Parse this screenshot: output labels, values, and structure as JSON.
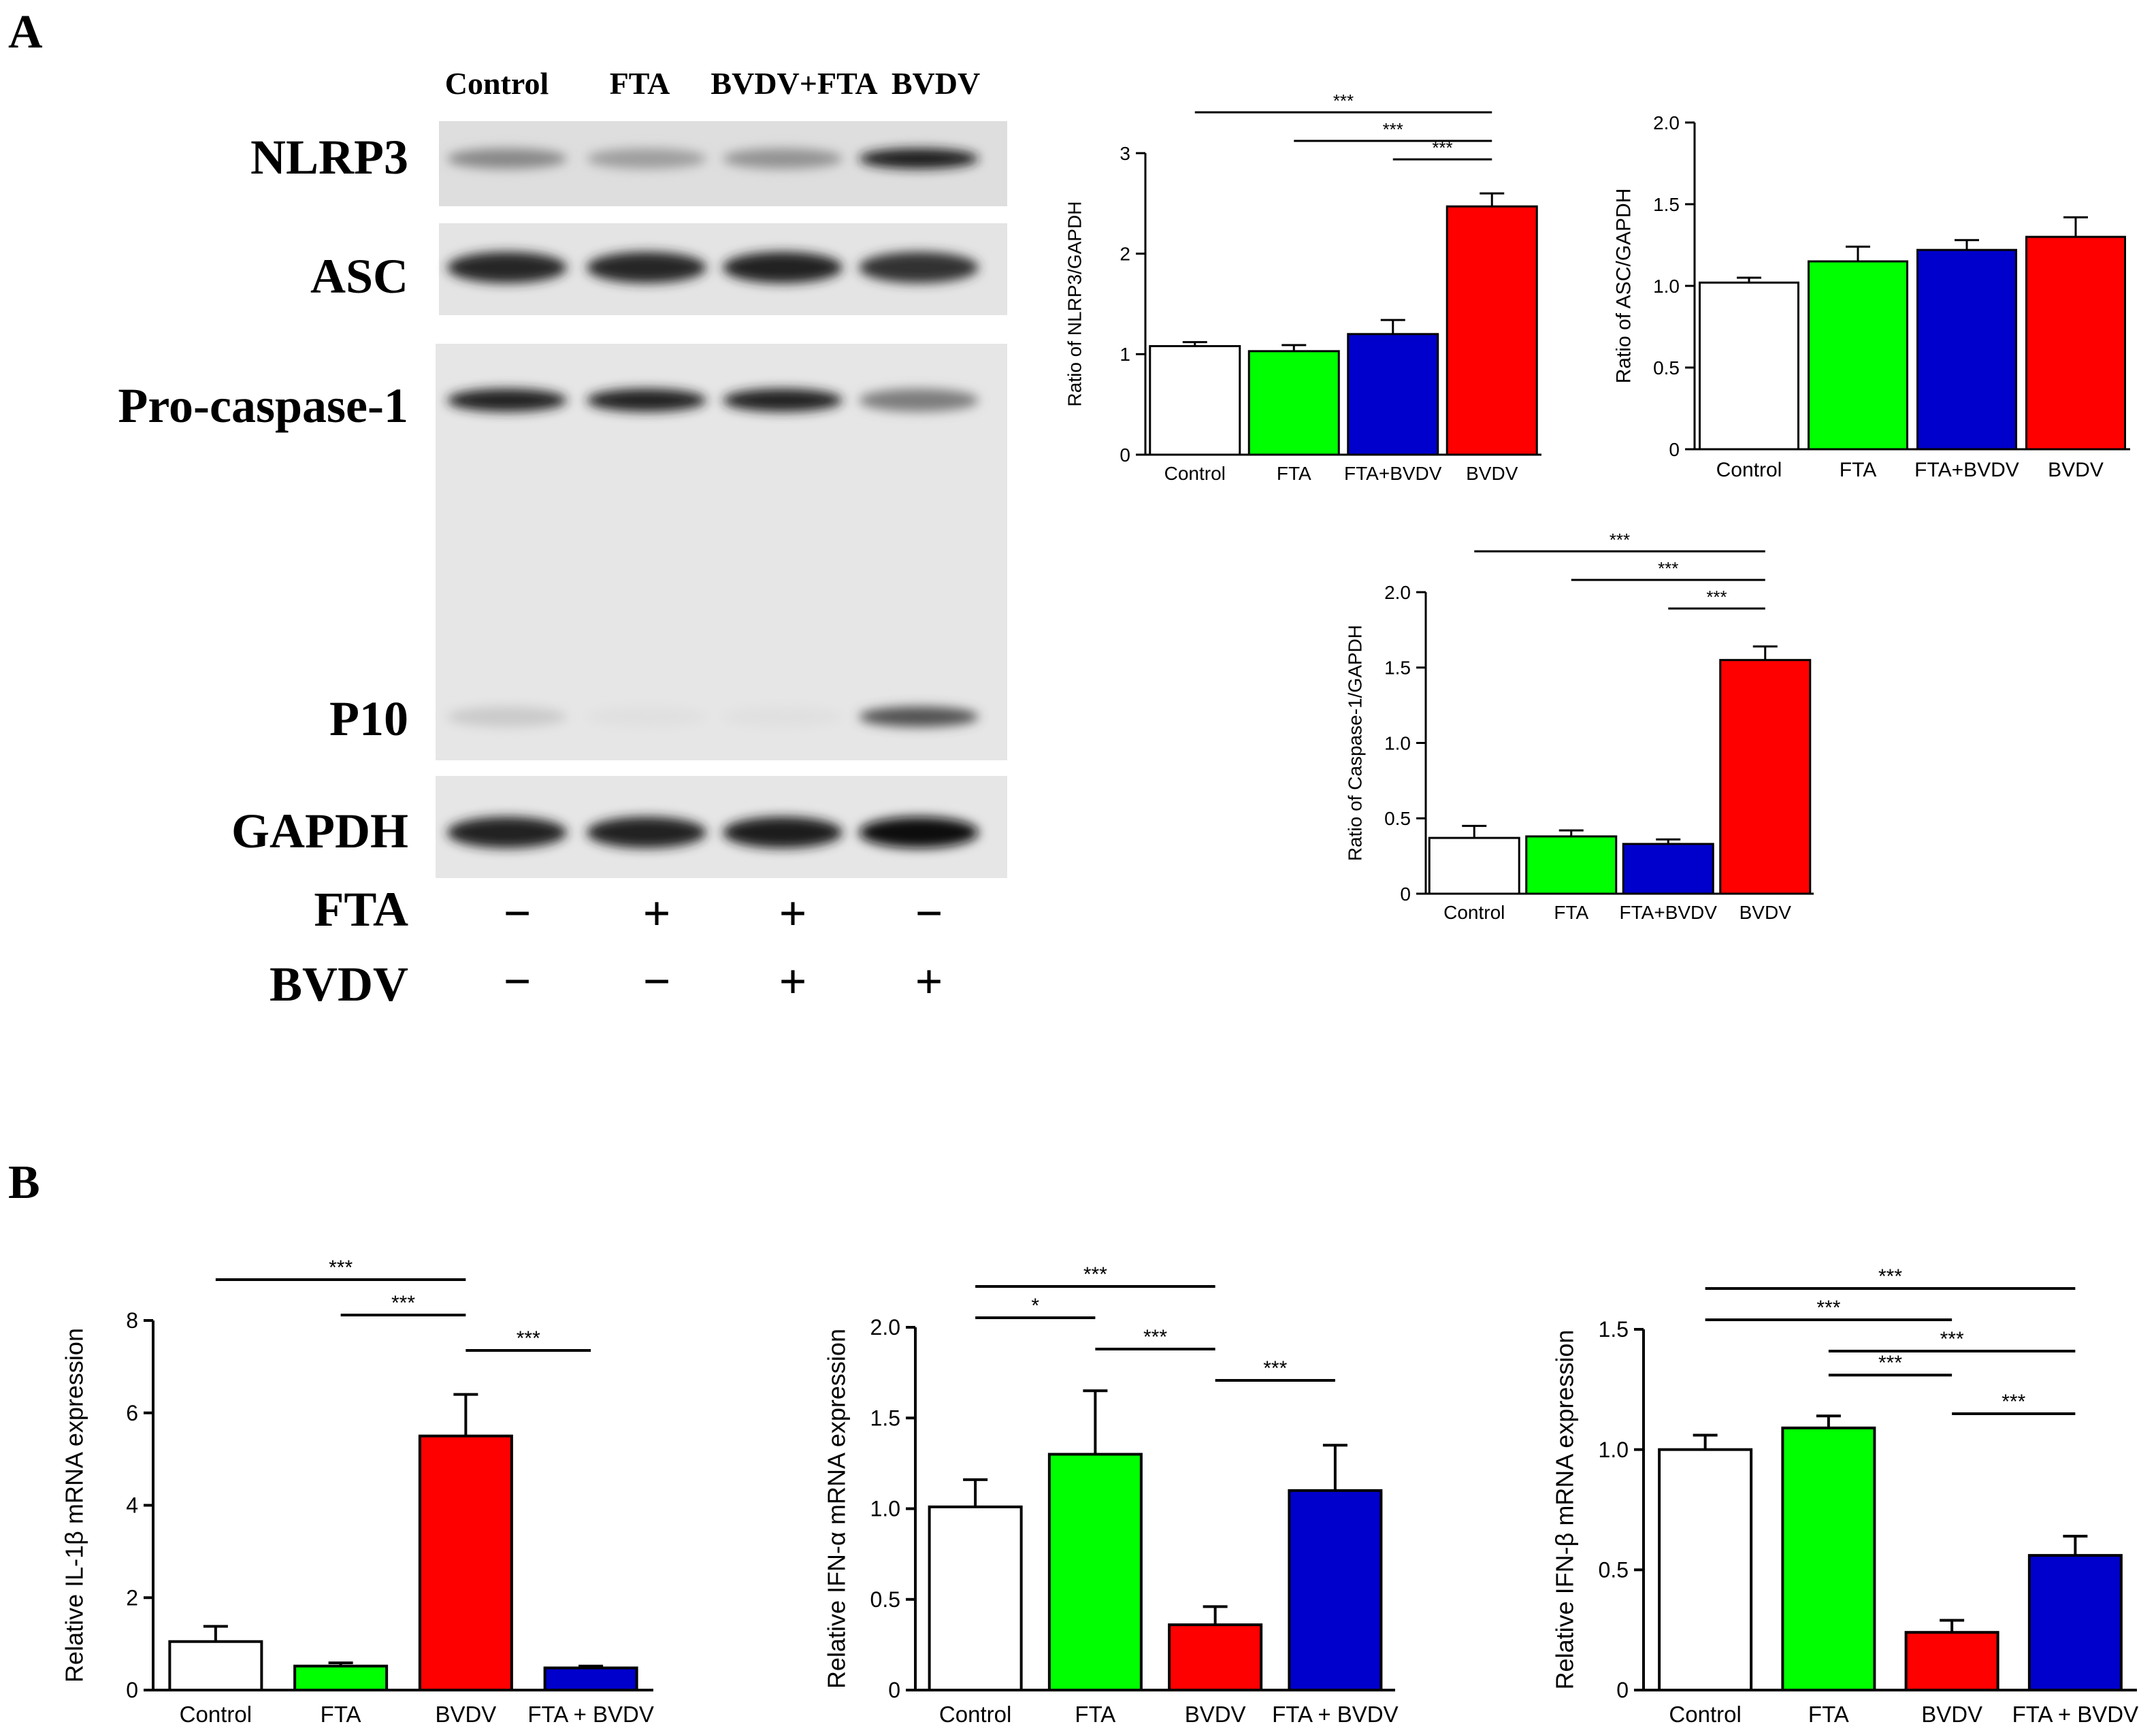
{
  "panel_labels": {
    "a": "A",
    "b": "B"
  },
  "blot": {
    "lanes": [
      "Control",
      "FTA",
      "BVDV+FTA",
      "BVDV"
    ],
    "bands": [
      "NLRP3",
      "ASC",
      "Pro-caspase-1",
      "P10",
      "GAPDH"
    ],
    "treatment_rows": [
      {
        "label": "FTA",
        "signs": [
          "−",
          "+",
          "+",
          "−"
        ]
      },
      {
        "label": "BVDV",
        "signs": [
          "−",
          "−",
          "+",
          "+"
        ]
      }
    ],
    "band_intensity": {
      "NLRP3": [
        0.45,
        0.35,
        0.4,
        0.95
      ],
      "ASC": [
        0.9,
        0.9,
        0.92,
        0.85
      ],
      "Pro-caspase-1": [
        0.92,
        0.92,
        0.92,
        0.5
      ],
      "P10": [
        0.15,
        0.05,
        0.05,
        0.7
      ],
      "GAPDH": [
        0.92,
        0.92,
        0.95,
        1.0
      ]
    }
  },
  "colors": {
    "Control": "#ffffff",
    "FTA": "#00ff00",
    "FTA+BVDV": "#0000cc",
    "BVDV": "#ff0000"
  },
  "chart_data": [
    {
      "id": "nlrp3",
      "type": "bar",
      "categories": [
        "Control",
        "FTA",
        "FTA+BVDV",
        "BVDV"
      ],
      "values": [
        1.08,
        1.03,
        1.2,
        2.47
      ],
      "errors": [
        0.04,
        0.06,
        0.14,
        0.13
      ],
      "ylabel": "Ratio of NLRP3/GAPDH",
      "ylim": [
        0,
        3
      ],
      "yticks": [
        "0",
        "1",
        "2",
        "3"
      ],
      "significance": [
        {
          "from": 0,
          "to": 3,
          "label": "***"
        },
        {
          "from": 1,
          "to": 3,
          "label": "***"
        },
        {
          "from": 2,
          "to": 3,
          "label": "***"
        }
      ]
    },
    {
      "id": "asc",
      "type": "bar",
      "categories": [
        "Control",
        "FTA",
        "FTA+BVDV",
        "BVDV"
      ],
      "values": [
        1.02,
        1.15,
        1.22,
        1.3
      ],
      "errors": [
        0.03,
        0.09,
        0.06,
        0.12
      ],
      "ylabel": "Ratio of ASC/GAPDH",
      "ylim": [
        0,
        2
      ],
      "yticks": [
        "0",
        "0.5",
        "1.0",
        "1.5",
        "2.0"
      ],
      "significance": []
    },
    {
      "id": "caspase1",
      "type": "bar",
      "categories": [
        "Control",
        "FTA",
        "FTA+BVDV",
        "BVDV"
      ],
      "values": [
        0.37,
        0.38,
        0.33,
        1.55
      ],
      "errors": [
        0.08,
        0.04,
        0.03,
        0.09
      ],
      "ylabel": "Ratio of Caspase-1/GAPDH",
      "ylim": [
        0,
        2
      ],
      "yticks": [
        "0",
        "0.5",
        "1.0",
        "1.5",
        "2.0"
      ],
      "significance": [
        {
          "from": 0,
          "to": 3,
          "label": "***"
        },
        {
          "from": 1,
          "to": 3,
          "label": "***"
        },
        {
          "from": 2,
          "to": 3,
          "label": "***"
        }
      ]
    },
    {
      "id": "il1b",
      "type": "bar",
      "categories": [
        "Control",
        "FTA",
        "BVDV",
        "FTA + BVDV"
      ],
      "values": [
        1.05,
        0.52,
        5.5,
        0.48
      ],
      "errors": [
        0.33,
        0.07,
        0.9,
        0.04
      ],
      "ylabel": "Relative IL-1β mRNA expression",
      "ylim": [
        0,
        8
      ],
      "yticks": [
        "0",
        "2",
        "4",
        "6",
        "8"
      ],
      "significance": [
        {
          "from": 0,
          "to": 2,
          "label": "***"
        },
        {
          "from": 1,
          "to": 2,
          "label": "***"
        },
        {
          "from": 2,
          "to": 3,
          "label": "***"
        }
      ]
    },
    {
      "id": "ifna",
      "type": "bar",
      "categories": [
        "Control",
        "FTA",
        "BVDV",
        "FTA + BVDV"
      ],
      "values": [
        1.01,
        1.3,
        0.36,
        1.1
      ],
      "errors": [
        0.15,
        0.35,
        0.1,
        0.25
      ],
      "ylabel": "Relative IFN-α mRNA expression",
      "ylim": [
        0,
        2
      ],
      "yticks": [
        "0",
        "0.5",
        "1.0",
        "1.5",
        "2.0"
      ],
      "significance": [
        {
          "from": 0,
          "to": 2,
          "label": "***"
        },
        {
          "from": 0,
          "to": 1,
          "label": "*"
        },
        {
          "from": 1,
          "to": 2,
          "label": "***"
        },
        {
          "from": 2,
          "to": 3,
          "label": "***"
        }
      ]
    },
    {
      "id": "ifnb",
      "type": "bar",
      "categories": [
        "Control",
        "FTA",
        "BVDV",
        "FTA + BVDV"
      ],
      "values": [
        1.0,
        1.09,
        0.24,
        0.56
      ],
      "errors": [
        0.06,
        0.05,
        0.05,
        0.08
      ],
      "ylabel": "Relative IFN-β mRNA expression",
      "ylim": [
        0,
        1.5
      ],
      "yticks": [
        "0",
        "0.5",
        "1.0",
        "1.5"
      ],
      "significance": [
        {
          "from": 0,
          "to": 3,
          "label": "***"
        },
        {
          "from": 0,
          "to": 2,
          "label": "***"
        },
        {
          "from": 1,
          "to": 3,
          "label": "***"
        },
        {
          "from": 1,
          "to": 2,
          "label": "***"
        },
        {
          "from": 2,
          "to": 3,
          "label": "***"
        }
      ]
    }
  ]
}
